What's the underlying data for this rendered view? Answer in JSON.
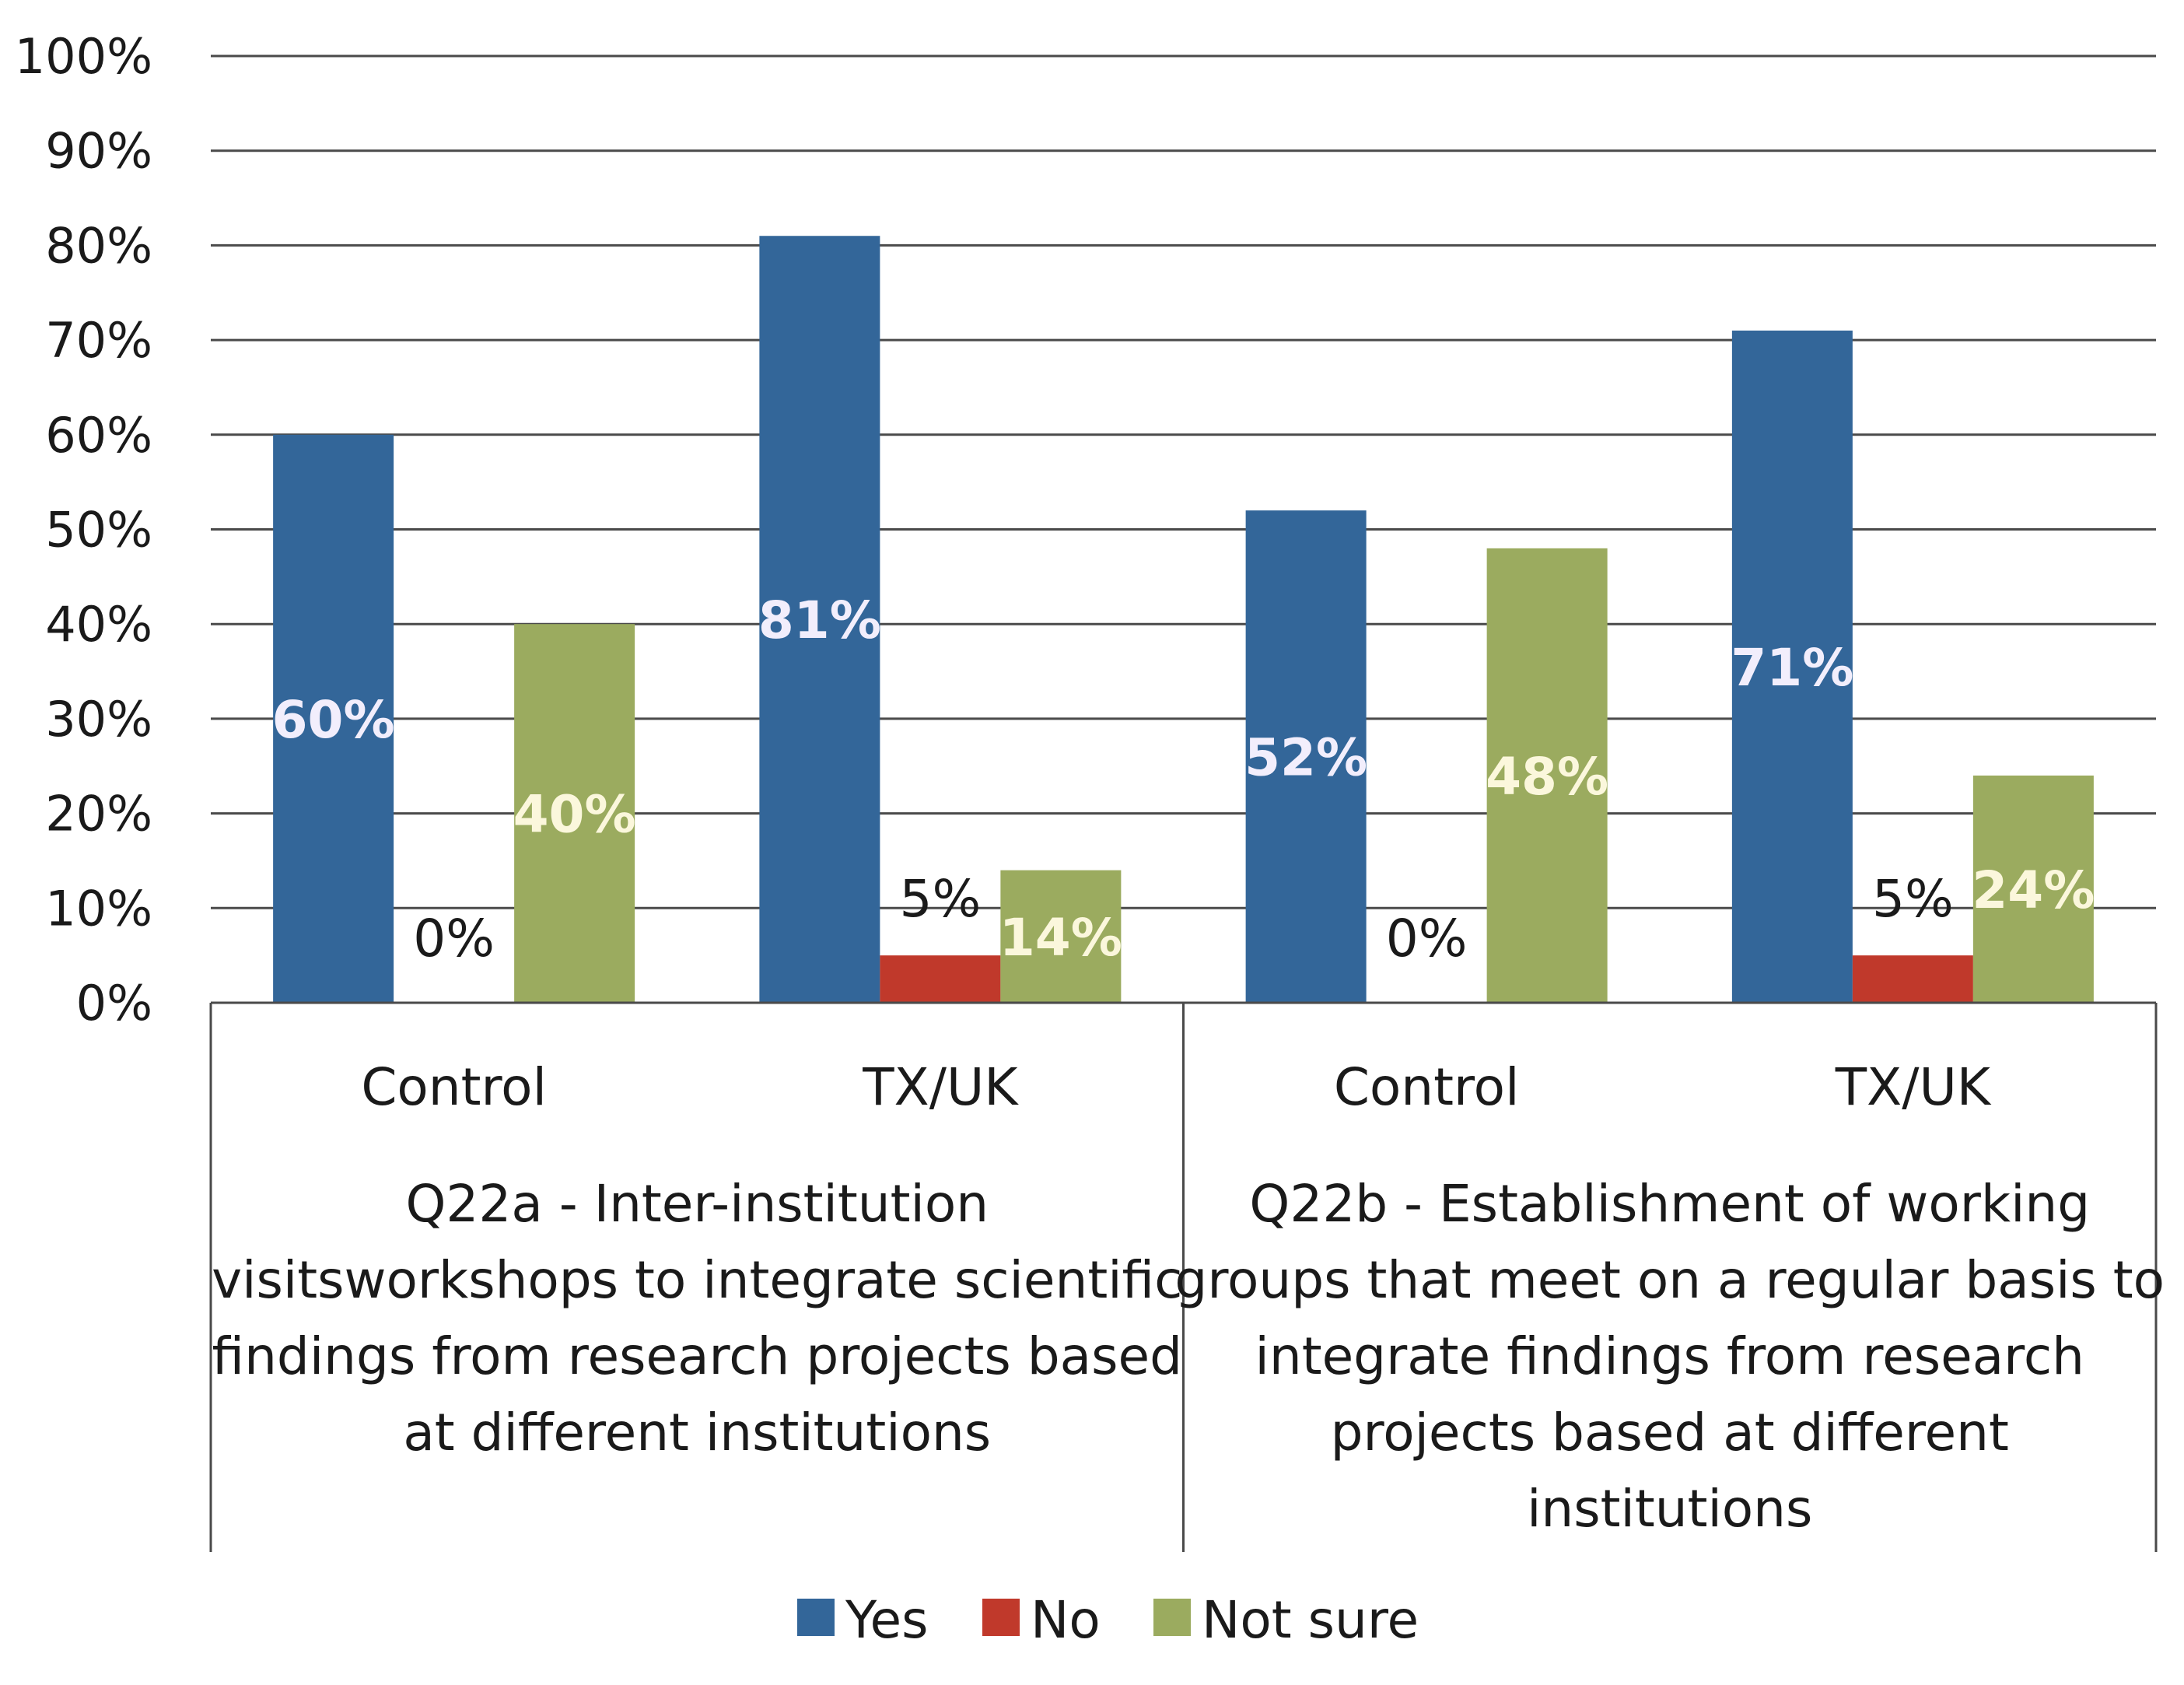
{
  "chart_data": {
    "type": "bar",
    "ylim": [
      0,
      100
    ],
    "y_ticks": [
      "0%",
      "10%",
      "20%",
      "30%",
      "40%",
      "50%",
      "60%",
      "70%",
      "80%",
      "90%",
      "100%"
    ],
    "grid": true,
    "legend_position": "bottom",
    "groups": [
      {
        "label_lines": [
          "Q22a - Inter-institution",
          "visitsworkshops  to integrate scientific",
          "findings from research  projects based",
          "at different institutions"
        ],
        "categories": [
          "Control",
          "TX/UK"
        ]
      },
      {
        "label_lines": [
          "Q22b - Establishment of working",
          "groups that meet on a regular basis to",
          "integrate findings from research",
          "projects based at different",
          "institutions"
        ],
        "categories": [
          "Control",
          "TX/UK"
        ]
      }
    ],
    "series": [
      {
        "name": "Yes",
        "color": "#336699",
        "values": [
          60,
          81,
          52,
          71
        ],
        "labels": [
          "60%",
          "81%",
          "52%",
          "71%"
        ]
      },
      {
        "name": "No",
        "color": "#c0392b",
        "values": [
          0,
          5,
          0,
          5
        ],
        "labels": [
          "0%",
          "5%",
          "0%",
          "5%"
        ]
      },
      {
        "name": "Not sure",
        "color": "#9bab5f",
        "values": [
          40,
          14,
          48,
          24
        ],
        "labels": [
          "40%",
          "14%",
          "48%",
          "24%"
        ]
      }
    ],
    "label_colors": {
      "Yes": "#f2eefc",
      "No": "#1a1a1a",
      "Not sure": "#fbf7dc"
    }
  }
}
